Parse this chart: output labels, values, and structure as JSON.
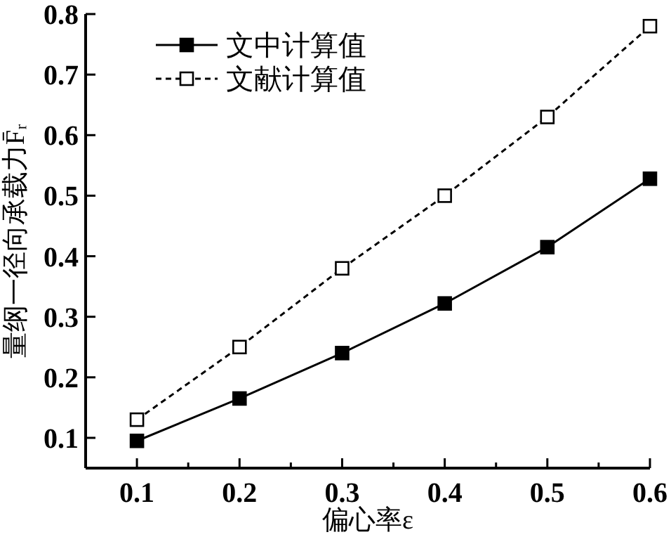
{
  "chart_data": {
    "type": "line",
    "xlabel": "偏心率ε",
    "ylabel": "量纲一径向承载力F̄ᵣ",
    "x": [
      0.1,
      0.2,
      0.3,
      0.4,
      0.5,
      0.6
    ],
    "series": [
      {
        "name": "文中计算值",
        "color": "#000000",
        "values": [
          0.095,
          0.165,
          0.24,
          0.322,
          0.415,
          0.528
        ],
        "line_style": "solid",
        "marker": "square"
      },
      {
        "name": "文献计算值",
        "color": "#000000",
        "values": [
          0.13,
          0.25,
          0.38,
          0.5,
          0.63,
          0.78
        ],
        "line_style": "dashed",
        "marker": "square"
      }
    ],
    "xlim": [
      0.05,
      0.6
    ],
    "ylim": [
      0.05,
      0.8
    ],
    "xticks": [
      0.1,
      {
        "value": 0.15,
        "label": null
      },
      0.2,
      {
        "value": 0.25,
        "label": null
      },
      0.3,
      {
        "value": 0.35,
        "label": null
      },
      0.4,
      {
        "value": 0.45,
        "label": null
      },
      0.5,
      {
        "value": 0.55,
        "label": null
      },
      0.6
    ],
    "yticks": [
      0.1,
      0.2,
      0.3,
      0.4,
      0.5,
      0.6,
      0.7,
      0.8
    ],
    "grid": false,
    "legend": "top left"
  }
}
